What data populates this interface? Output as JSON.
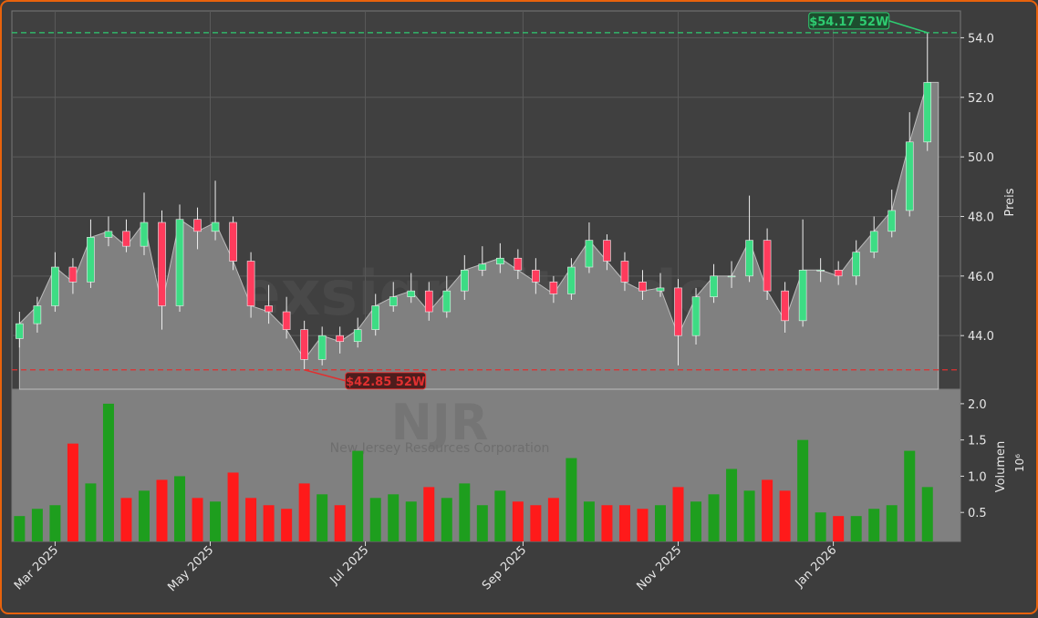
{
  "chart_data": [
    {
      "type": "candlestick",
      "watermark": "forexsignaltrade",
      "y_label": "Preis",
      "x": [
        3,
        10,
        17,
        24,
        31,
        38,
        45,
        52,
        59,
        66,
        73,
        80,
        87,
        94,
        101,
        108,
        115,
        122,
        129,
        136,
        143,
        150,
        157,
        164,
        171,
        178,
        185,
        192,
        199,
        206,
        213,
        220,
        227,
        234,
        241,
        248,
        255,
        262,
        269,
        276,
        283,
        290,
        297,
        304,
        311,
        318,
        325,
        332,
        339,
        346,
        353,
        360
      ],
      "open": [
        43.9,
        44.4,
        45.0,
        46.3,
        45.8,
        47.3,
        47.5,
        47.0,
        47.8,
        45.0,
        47.9,
        47.5,
        47.8,
        46.5,
        45.0,
        44.8,
        44.2,
        43.2,
        44.0,
        43.8,
        44.2,
        45.0,
        45.3,
        45.5,
        44.8,
        45.5,
        46.2,
        46.4,
        46.6,
        46.2,
        45.8,
        45.4,
        46.3,
        47.2,
        46.5,
        45.8,
        45.5,
        45.6,
        44.0,
        45.3,
        46.0,
        46.0,
        47.2,
        45.5,
        44.5,
        46.2,
        46.2,
        46.0,
        46.8,
        47.5,
        48.2,
        50.5
      ],
      "high": [
        44.8,
        45.3,
        46.8,
        46.6,
        47.9,
        48.0,
        47.9,
        48.8,
        48.2,
        48.4,
        48.3,
        49.2,
        48.0,
        46.8,
        45.7,
        45.3,
        44.5,
        44.3,
        44.3,
        44.6,
        45.4,
        45.8,
        46.1,
        45.8,
        46.0,
        46.7,
        47.0,
        47.1,
        46.9,
        46.6,
        46.0,
        46.6,
        47.8,
        47.4,
        46.8,
        46.2,
        46.1,
        45.9,
        45.6,
        46.4,
        46.5,
        48.7,
        47.6,
        45.8,
        47.9,
        46.6,
        46.5,
        47.2,
        48.0,
        48.9,
        51.5,
        54.17
      ],
      "low": [
        43.6,
        44.1,
        44.8,
        45.4,
        45.6,
        47.0,
        46.8,
        46.7,
        44.2,
        44.8,
        46.9,
        47.2,
        46.2,
        44.6,
        44.4,
        43.9,
        42.85,
        43.0,
        43.4,
        43.6,
        44.0,
        44.8,
        45.1,
        44.5,
        44.6,
        45.2,
        46.0,
        46.1,
        45.9,
        45.4,
        45.1,
        45.2,
        46.1,
        46.2,
        45.5,
        45.2,
        45.3,
        43.0,
        43.7,
        45.1,
        45.6,
        45.8,
        45.2,
        44.1,
        44.3,
        45.8,
        45.7,
        45.7,
        46.6,
        47.3,
        48.0,
        50.2
      ],
      "close": [
        44.4,
        45.0,
        46.3,
        45.8,
        47.3,
        47.5,
        47.0,
        47.8,
        45.0,
        47.9,
        47.5,
        47.8,
        46.5,
        45.0,
        44.8,
        44.2,
        43.2,
        44.0,
        43.8,
        44.2,
        45.0,
        45.3,
        45.5,
        44.8,
        45.5,
        46.2,
        46.4,
        46.6,
        46.2,
        45.8,
        45.4,
        46.3,
        47.2,
        46.5,
        45.8,
        45.5,
        45.6,
        44.0,
        45.3,
        46.0,
        46.0,
        47.2,
        45.5,
        44.5,
        46.2,
        46.2,
        46.0,
        46.8,
        47.5,
        48.2,
        50.5,
        52.5
      ],
      "up_color": "#3ddc84",
      "down_color": "#ff3b5c",
      "area_color": "#808080",
      "xlim": [
        0,
        373
      ],
      "xticks": [
        {
          "value": 17,
          "label": "Mar 2025"
        },
        {
          "value": 78,
          "label": "May 2025"
        },
        {
          "value": 139,
          "label": "Jul 2025"
        },
        {
          "value": 201,
          "label": "Sep 2025"
        },
        {
          "value": 262,
          "label": "Nov 2025"
        },
        {
          "value": 323,
          "label": "Jan 2026"
        }
      ],
      "ylim": [
        42.2,
        54.9
      ],
      "yticks": [
        {
          "value": 44,
          "label": "44.0"
        },
        {
          "value": 46,
          "label": "46.0"
        },
        {
          "value": 48,
          "label": "48.0"
        },
        {
          "value": 50,
          "label": "50.0"
        },
        {
          "value": 52,
          "label": "52.0"
        },
        {
          "value": 54,
          "label": "54.0"
        }
      ],
      "grid": true,
      "annotations": [
        {
          "text": "$54.17 52W",
          "value": 54.17,
          "color": "#2ecc71"
        },
        {
          "text": "$42.85 52W",
          "value": 42.85,
          "color": "#e03030"
        }
      ]
    },
    {
      "type": "bar",
      "watermark": "NJR",
      "subtitle": "New Jersey Resources Corporation",
      "y_label": "Volumen",
      "y_offset_label": "10⁶",
      "values": [
        0.45,
        0.55,
        0.6,
        1.45,
        0.9,
        2.0,
        0.7,
        0.8,
        0.95,
        1.0,
        0.7,
        0.65,
        1.05,
        0.7,
        0.6,
        0.55,
        0.9,
        0.75,
        0.6,
        1.35,
        0.7,
        0.75,
        0.65,
        0.85,
        0.7,
        0.9,
        0.6,
        0.8,
        0.65,
        0.6,
        0.7,
        1.25,
        0.65,
        0.6,
        0.6,
        0.55,
        0.6,
        0.85,
        0.65,
        0.75,
        1.1,
        0.8,
        0.95,
        0.8,
        1.5,
        0.5,
        0.45,
        0.45,
        0.55,
        0.6,
        1.35,
        0.85
      ],
      "ylim": [
        0.1,
        2.2
      ],
      "yticks": [
        0.5,
        {
          "value": 1,
          "label": "1.0"
        },
        1.5,
        {
          "value": 2,
          "label": "2.0"
        }
      ],
      "up_color": "#1e9e1e",
      "down_color": "#ff1a1a"
    }
  ]
}
